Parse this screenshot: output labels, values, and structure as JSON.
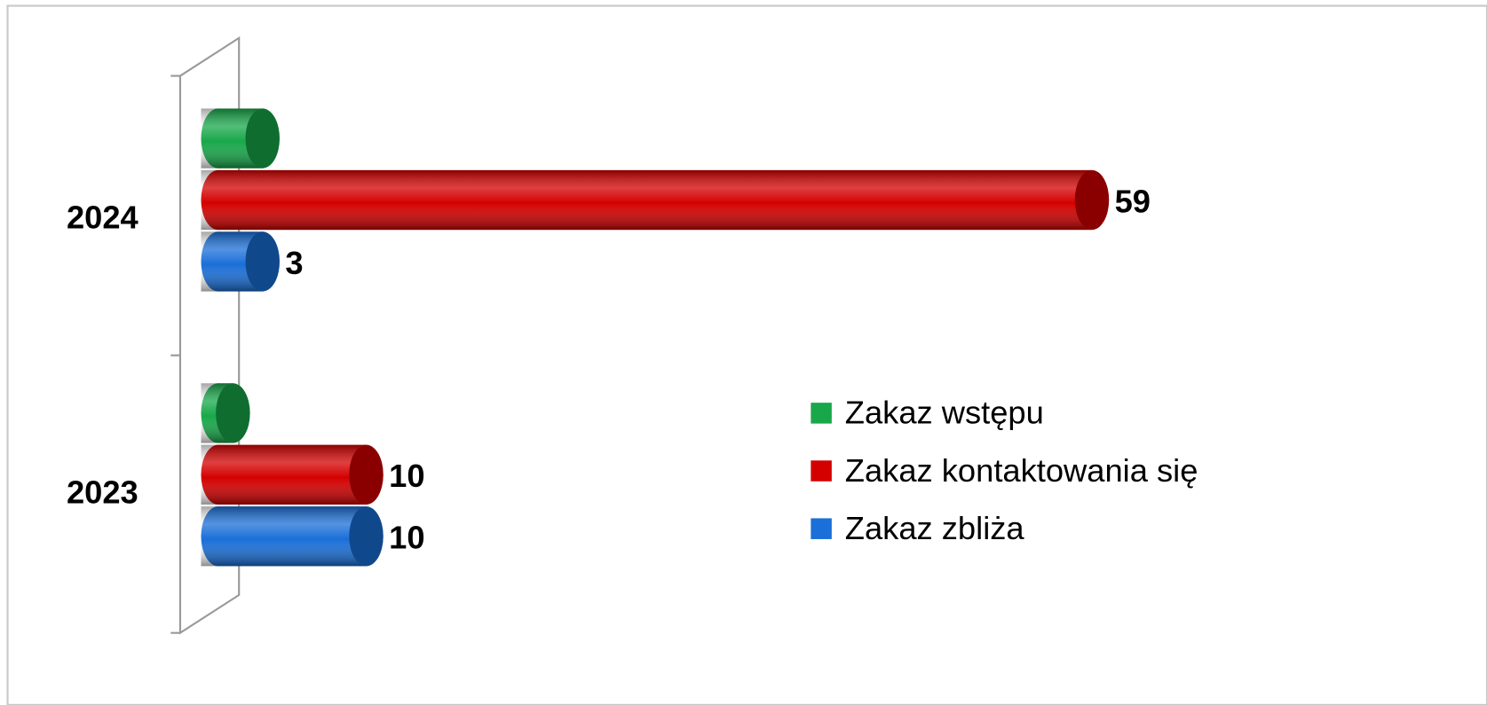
{
  "chart_data": {
    "type": "bar3d_horizontal",
    "categories": [
      "2023",
      "2024"
    ],
    "series": [
      {
        "name": "Zakaz wstępu",
        "color": "#18a84a",
        "values": [
          1,
          3
        ],
        "show_labels": false
      },
      {
        "name": "Zakaz kontaktowania się",
        "color": "#d40000",
        "values": [
          10,
          59
        ],
        "show_labels": true
      },
      {
        "name": "Zakaz zbliża",
        "color": "#1a6fd8",
        "values": [
          10,
          3
        ],
        "show_labels": true
      }
    ],
    "xlim": [
      0,
      60
    ],
    "legend": "right"
  }
}
